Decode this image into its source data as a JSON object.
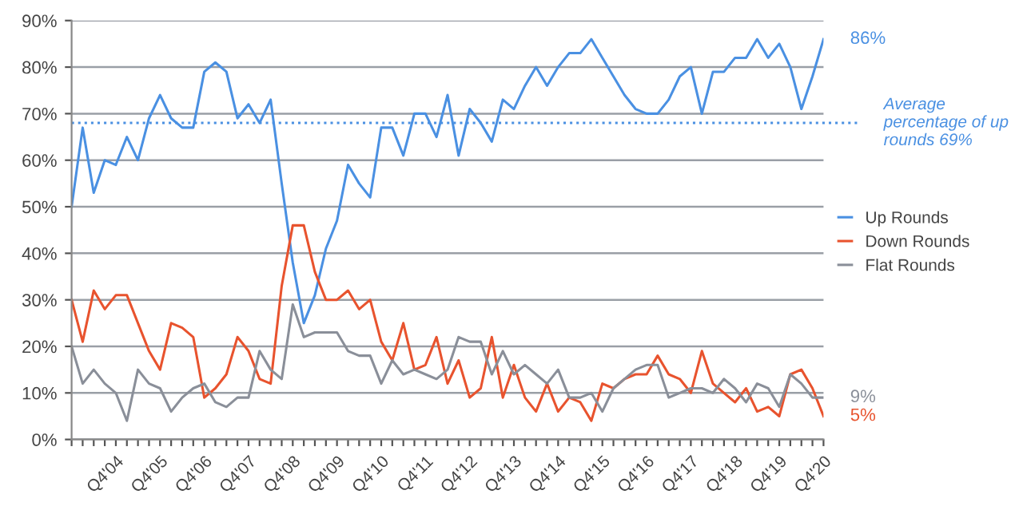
{
  "chart_data": {
    "type": "line",
    "categories": [
      null,
      null,
      null,
      null,
      "Q4'04",
      null,
      null,
      null,
      "Q4'05",
      null,
      null,
      null,
      "Q4'06",
      null,
      null,
      null,
      "Q4'07",
      null,
      null,
      null,
      "Q4'08",
      null,
      null,
      null,
      "Q4'09",
      null,
      null,
      null,
      "Q4'10",
      null,
      null,
      null,
      "Q4'11",
      null,
      null,
      null,
      "Q4'12",
      null,
      null,
      null,
      "Q4'13",
      null,
      null,
      null,
      "Q4'14",
      null,
      null,
      null,
      "Q4'15",
      null,
      null,
      null,
      "Q4'16",
      null,
      null,
      null,
      "Q4'17",
      null,
      null,
      null,
      "Q4'18",
      null,
      null,
      null,
      "Q4'19",
      null,
      null,
      null,
      "Q4'20"
    ],
    "series": [
      {
        "name": "Up Rounds",
        "color": "#4a90e2",
        "values": [
          50,
          67,
          53,
          60,
          59,
          65,
          60,
          69,
          74,
          69,
          67,
          67,
          79,
          81,
          79,
          69,
          72,
          68,
          73,
          55,
          38,
          25,
          31,
          41,
          47,
          59,
          55,
          52,
          67,
          67,
          61,
          70,
          70,
          65,
          74,
          61,
          71,
          68,
          64,
          73,
          71,
          76,
          80,
          76,
          80,
          83,
          83,
          86,
          82,
          78,
          74,
          71,
          70,
          70,
          73,
          78,
          80,
          70,
          79,
          79,
          82,
          82,
          86,
          82,
          85,
          80,
          71,
          78,
          86
        ]
      },
      {
        "name": "Down Rounds",
        "color": "#e8532e",
        "values": [
          30,
          21,
          32,
          28,
          31,
          31,
          25,
          19,
          15,
          25,
          24,
          22,
          9,
          11,
          14,
          22,
          19,
          13,
          12,
          33,
          46,
          46,
          36,
          30,
          30,
          32,
          28,
          30,
          21,
          17,
          25,
          15,
          16,
          22,
          12,
          17,
          9,
          11,
          22,
          9,
          16,
          9,
          6,
          12,
          6,
          9,
          8,
          4,
          12,
          11,
          13,
          14,
          14,
          18,
          14,
          13,
          10,
          19,
          12,
          10,
          8,
          11,
          6,
          7,
          5,
          14,
          15,
          11,
          5
        ]
      },
      {
        "name": "Flat Rounds",
        "color": "#8a8f99",
        "values": [
          20,
          12,
          15,
          12,
          10,
          4,
          15,
          12,
          11,
          6,
          9,
          11,
          12,
          8,
          7,
          9,
          9,
          19,
          15,
          13,
          29,
          22,
          23,
          23,
          23,
          19,
          18,
          18,
          12,
          17,
          14,
          15,
          14,
          13,
          15,
          22,
          21,
          21,
          14,
          19,
          14,
          16,
          14,
          12,
          15,
          9,
          9,
          10,
          6,
          11,
          13,
          15,
          16,
          16,
          9,
          10,
          11,
          11,
          10,
          13,
          11,
          8,
          12,
          11,
          7,
          14,
          12,
          9,
          9
        ]
      }
    ],
    "ylim": [
      0,
      90
    ],
    "yticks": [
      {
        "value": 0,
        "label": "0%"
      },
      {
        "value": 10,
        "label": "10%"
      },
      {
        "value": 20,
        "label": "20%"
      },
      {
        "value": 30,
        "label": "30%"
      },
      {
        "value": 40,
        "label": "40%"
      },
      {
        "value": 50,
        "label": "50%"
      },
      {
        "value": 60,
        "label": "60%"
      },
      {
        "value": 70,
        "label": "70%"
      },
      {
        "value": 80,
        "label": "80%"
      },
      {
        "value": 90,
        "label": "90%"
      }
    ],
    "grid": "y",
    "legend": "right",
    "marker": "none",
    "line_style": "solid",
    "ref_lines": [
      {
        "axis": "y",
        "value": 68,
        "label": "Average percentage of up rounds 69%",
        "color": "#4a90e2",
        "line_style": "dotted"
      }
    ],
    "annotations": [
      {
        "text": "86%",
        "x": "Q4'20",
        "y": 86
      },
      {
        "text": "9%",
        "x": "Q4'20",
        "y": 9
      },
      {
        "text": "5%",
        "x": "Q4'20",
        "y": 5
      }
    ]
  }
}
